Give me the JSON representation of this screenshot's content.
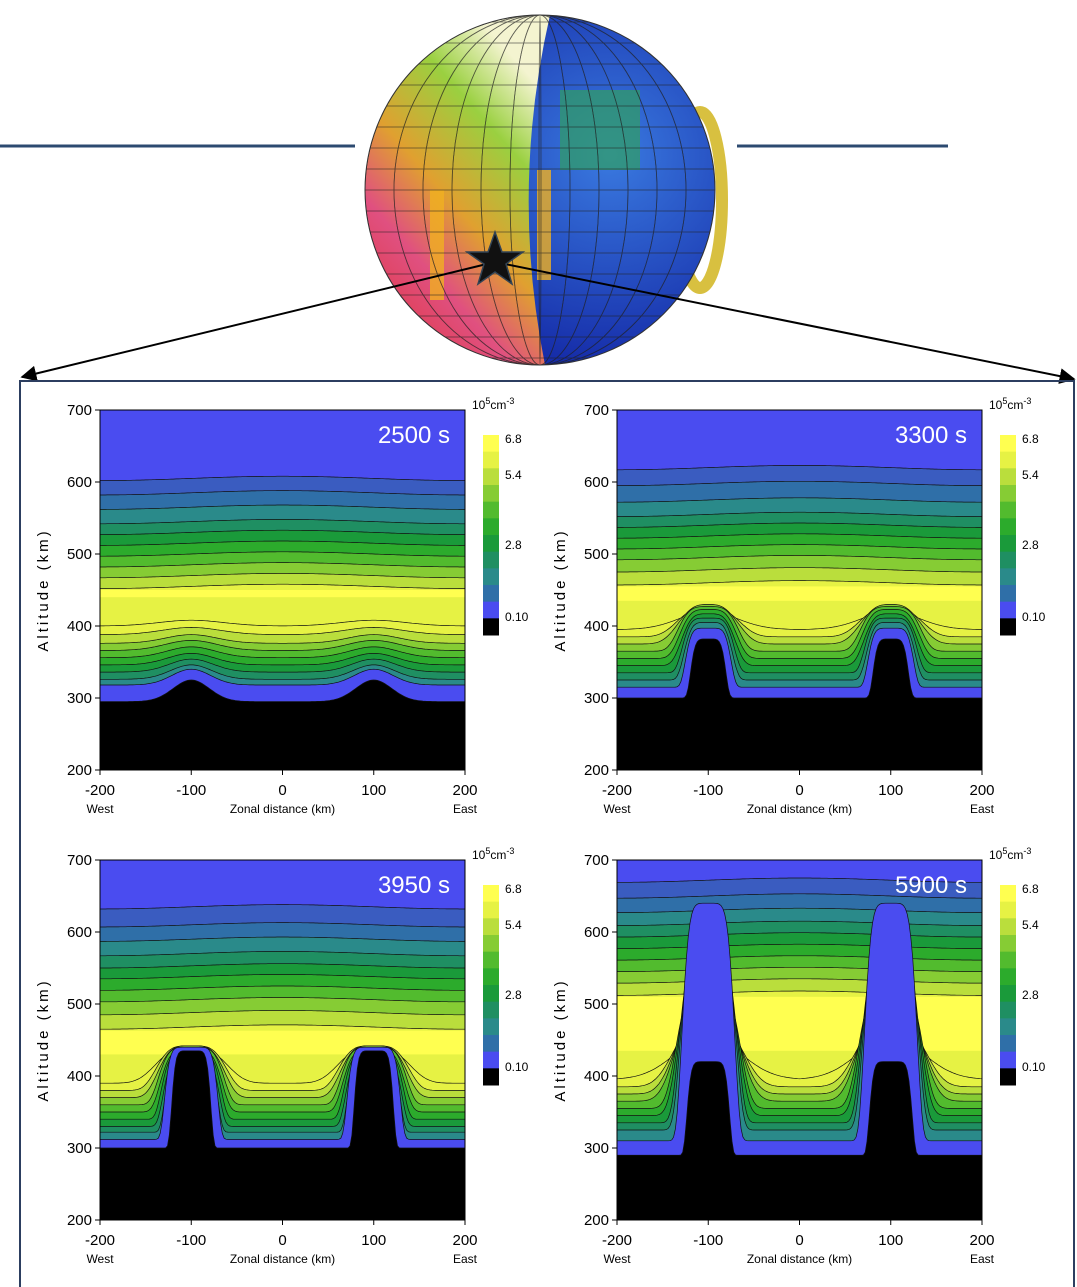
{
  "panels": [
    {
      "time": "2500 s",
      "y_label": "Altitude (km)",
      "x_label": "Zonal distance (km)",
      "x_west": "West",
      "x_east": "East",
      "yticks": [
        "700",
        "600",
        "500",
        "400",
        "300",
        "200"
      ],
      "xticks": [
        "-200",
        "-100",
        "0",
        "100",
        "200"
      ],
      "colorbar_unit": {
        "base": "10",
        "exp": "5",
        "unit": "cm",
        "unit_exp": "-3"
      },
      "colorbar_ticks": [
        "6.8",
        "5.4",
        "2.8",
        "0.10"
      ]
    },
    {
      "time": "3300 s",
      "y_label": "Altitude (km)",
      "x_label": "Zonal distance (km)",
      "x_west": "West",
      "x_east": "East",
      "yticks": [
        "700",
        "600",
        "500",
        "400",
        "300",
        "200"
      ],
      "xticks": [
        "-200",
        "-100",
        "0",
        "100",
        "200"
      ],
      "colorbar_unit": {
        "base": "10",
        "exp": "5",
        "unit": "cm",
        "unit_exp": "-3"
      },
      "colorbar_ticks": [
        "6.8",
        "5.4",
        "2.8",
        "0.10"
      ]
    },
    {
      "time": "3950 s",
      "y_label": "Altitude (km)",
      "x_label": "Zonal distance (km)",
      "x_west": "West",
      "x_east": "East",
      "yticks": [
        "700",
        "600",
        "500",
        "400",
        "300",
        "200"
      ],
      "xticks": [
        "-200",
        "-100",
        "0",
        "100",
        "200"
      ],
      "colorbar_unit": {
        "base": "10",
        "exp": "5",
        "unit": "cm",
        "unit_exp": "-3"
      },
      "colorbar_ticks": [
        "6.8",
        "5.4",
        "2.8",
        "0.10"
      ]
    },
    {
      "time": "5900 s",
      "y_label": "Altitude (km)",
      "x_label": "Zonal distance (km)",
      "x_west": "West",
      "x_east": "East",
      "yticks": [
        "700",
        "600",
        "500",
        "400",
        "300",
        "200"
      ],
      "xticks": [
        "-200",
        "-100",
        "0",
        "100",
        "200"
      ],
      "colorbar_unit": {
        "base": "10",
        "exp": "5",
        "unit": "cm",
        "unit_exp": "-3"
      },
      "colorbar_ticks": [
        "6.8",
        "5.4",
        "2.8",
        "0.10"
      ]
    }
  ]
}
